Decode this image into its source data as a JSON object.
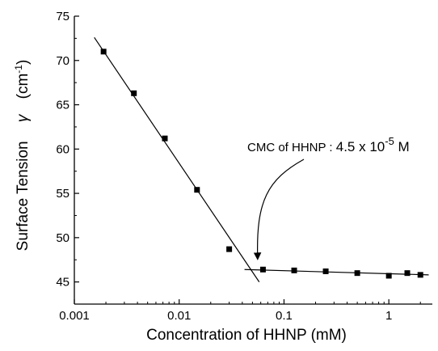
{
  "chart_data": {
    "type": "scatter",
    "xlabel": "Concentration of HHNP (mM)",
    "ylabel": "Surface Tension",
    "ylabel_symbol": "γ",
    "ylabel_unit_open": "(cm",
    "ylabel_unit_sup": "-1",
    "ylabel_unit_close": ")",
    "xscale": "log",
    "xlim": [
      0.001,
      2.6
    ],
    "ylim": [
      42.5,
      75
    ],
    "xticks": [
      0.001,
      0.01,
      0.1,
      1
    ],
    "xtick_labels": [
      "0.001",
      "0.01",
      "0.1",
      "1"
    ],
    "yticks": [
      45,
      50,
      55,
      60,
      65,
      70,
      75
    ],
    "ytick_labels": [
      "45",
      "50",
      "55",
      "60",
      "65",
      "70",
      "75"
    ],
    "grid": false,
    "series": [
      {
        "x": [
          0.0019,
          0.0037,
          0.0073,
          0.0148,
          0.03,
          0.063,
          0.125,
          0.25,
          0.5,
          1.0,
          1.5,
          2.0
        ],
        "y": [
          71.0,
          66.3,
          61.2,
          55.4,
          48.7,
          46.4,
          46.3,
          46.2,
          46.0,
          45.7,
          46.0,
          45.8
        ]
      }
    ],
    "fit_lines": [
      {
        "x": [
          0.00155,
          0.058
        ],
        "y": [
          72.6,
          45.0
        ]
      },
      {
        "x": [
          0.042,
          2.4
        ],
        "y": [
          46.4,
          45.8
        ]
      }
    ],
    "annotation": {
      "text_prefix": "CMC of HHNP : ",
      "text_value": "4.5 x 10",
      "text_sup": "-5",
      "text_unit": " M",
      "arrow_target": {
        "x": 0.056,
        "y": 47.3
      }
    }
  }
}
